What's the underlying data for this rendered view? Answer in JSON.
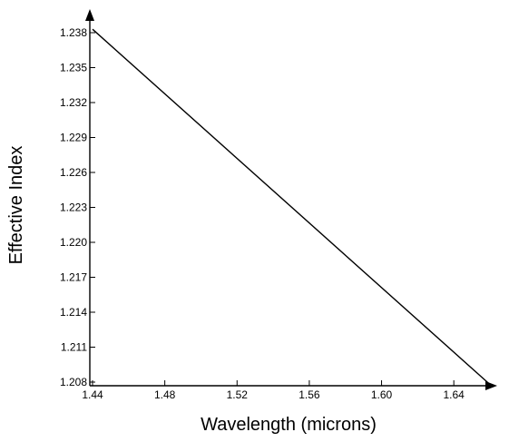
{
  "chart_data": {
    "type": "line",
    "title": "",
    "xlabel": "Wavelength  (microns)",
    "ylabel": "Effective  Index",
    "x_ticks": [
      "1.44",
      "1.48",
      "1.52",
      "1.56",
      "1.60",
      "1.64"
    ],
    "y_ticks": [
      "1.208",
      "1.211",
      "1.214",
      "1.217",
      "1.220",
      "1.223",
      "1.226",
      "1.229",
      "1.232",
      "1.235",
      "1.238"
    ],
    "xlim": [
      1.44,
      1.66
    ],
    "ylim": [
      1.208,
      1.2385
    ],
    "grid": false,
    "series": [
      {
        "x": [
          1.44,
          1.66
        ],
        "y": [
          1.2383,
          1.2078
        ],
        "color": "#000000"
      }
    ]
  }
}
